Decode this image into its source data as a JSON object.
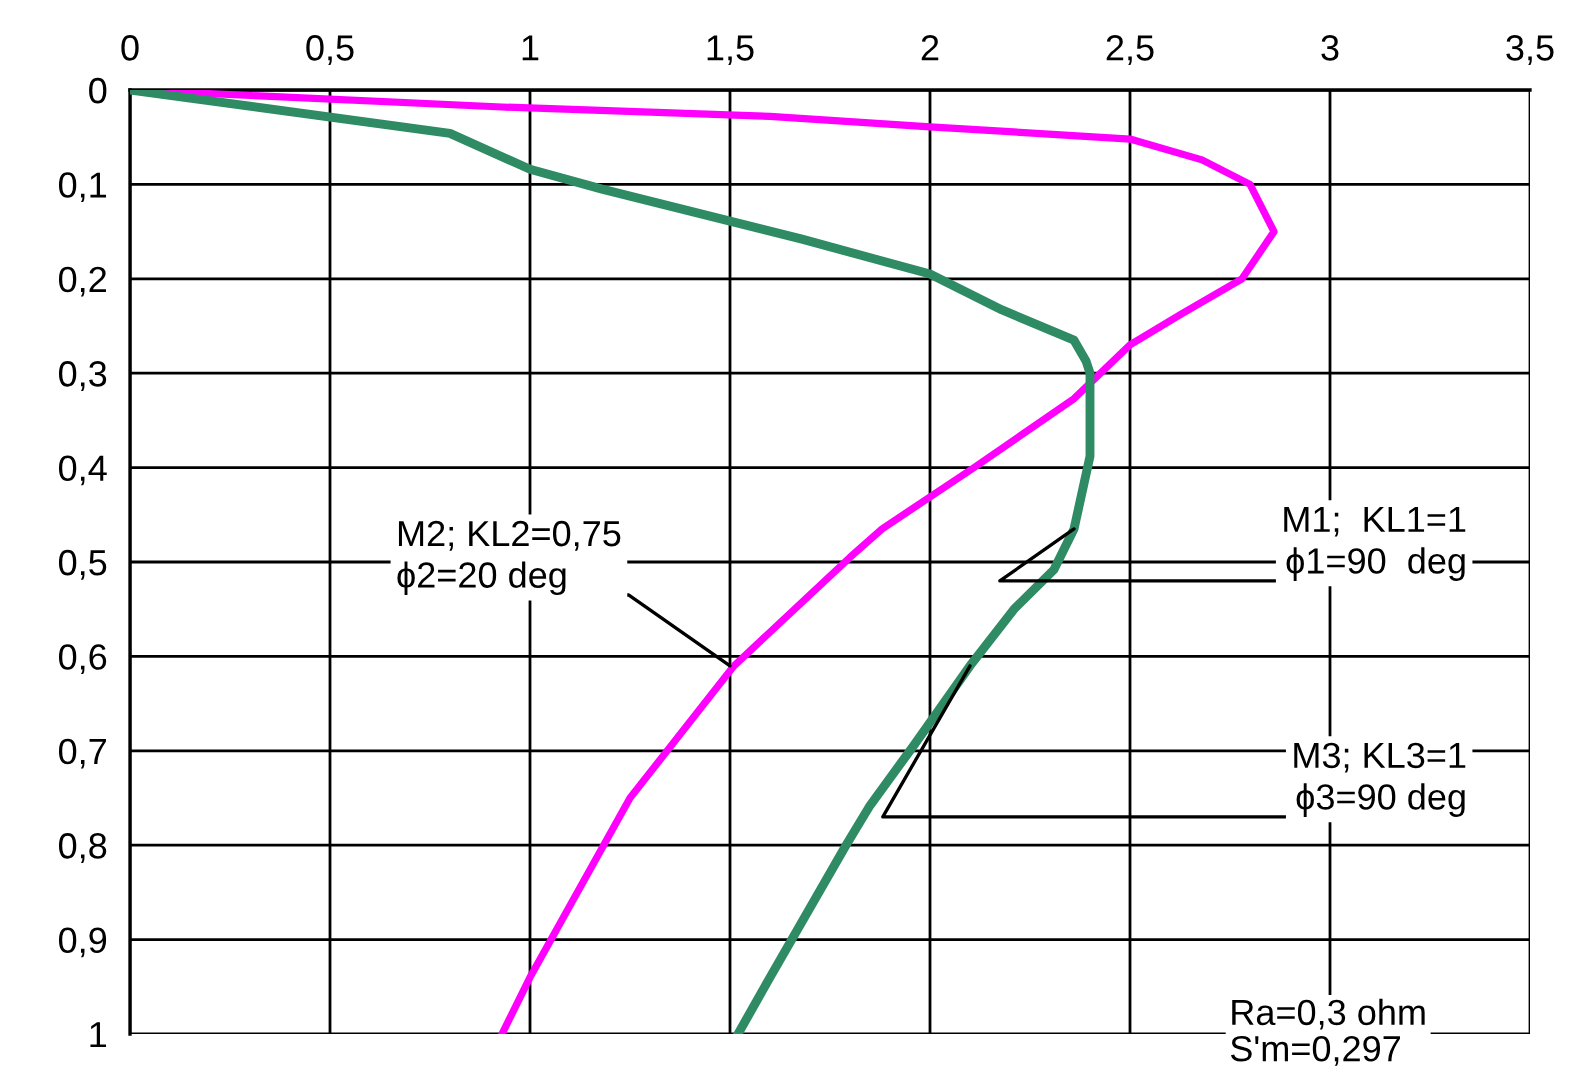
{
  "chart_data": {
    "type": "line",
    "xlim": [
      0,
      3.5
    ],
    "ylim": [
      1,
      0
    ],
    "xticks": [
      0,
      {
        "value": 0.5,
        "label": "0,5"
      },
      1,
      {
        "value": 1.5,
        "label": "1,5"
      },
      2,
      {
        "value": 2.5,
        "label": "2,5"
      },
      3,
      {
        "value": 3.5,
        "label": "3,5"
      }
    ],
    "yticks": [
      0,
      {
        "value": 0.1,
        "label": "0,1"
      },
      {
        "value": 0.2,
        "label": "0,2"
      },
      {
        "value": 0.3,
        "label": "0,3"
      },
      {
        "value": 0.4,
        "label": "0,4"
      },
      {
        "value": 0.5,
        "label": "0,5"
      },
      {
        "value": 0.6,
        "label": "0,6"
      },
      {
        "value": 0.7,
        "label": "0,7"
      },
      {
        "value": 0.8,
        "label": "0,8"
      },
      {
        "value": 0.9,
        "label": "0,9"
      },
      1
    ],
    "grid": true,
    "marker": "none",
    "line_style": "solid",
    "series": [
      {
        "color": "#ff00ff",
        "x": [
          0,
          0.93,
          1.6,
          2.0,
          2.5,
          2.68,
          2.8,
          2.86,
          2.78,
          2.63,
          2.5,
          2.36,
          2.11,
          1.88,
          1.8,
          1.51,
          1.25,
          1.0,
          0.93
        ],
        "values": [
          0,
          0.018,
          0.028,
          0.039,
          0.052,
          0.074,
          0.1,
          0.15,
          0.2,
          0.237,
          0.27,
          0.327,
          0.4,
          0.465,
          0.495,
          0.61,
          0.75,
          0.94,
          1.0
        ]
      },
      {
        "color": "#2e8b64",
        "x": [
          0,
          0.8,
          1.0,
          1.18,
          1.68,
          2.0,
          2.18,
          2.36,
          2.39,
          2.4,
          2.4,
          2.36,
          2.31,
          2.21,
          2.1,
          1.96,
          1.85,
          1.79,
          1.6,
          1.52
        ],
        "values": [
          0,
          0.046,
          0.084,
          0.105,
          0.158,
          0.195,
          0.233,
          0.265,
          0.287,
          0.3,
          0.388,
          0.465,
          0.508,
          0.55,
          0.61,
          0.694,
          0.758,
          0.8,
          0.94,
          1.0
        ]
      }
    ],
    "annotations": [
      {
        "text": "M2; KL2=0,75\nϕ2=20 deg",
        "x": 1.5,
        "y": 0.61
      },
      {
        "text": "M1;  KL1=1\nϕ1=90  deg",
        "x": 2.36,
        "y": 0.465
      },
      {
        "text": "M3; KL3=1\nϕ3=90 deg",
        "x": 2.1,
        "y": 0.61
      },
      "Ra=0,3 ohm\nS'm=0,297"
    ]
  }
}
